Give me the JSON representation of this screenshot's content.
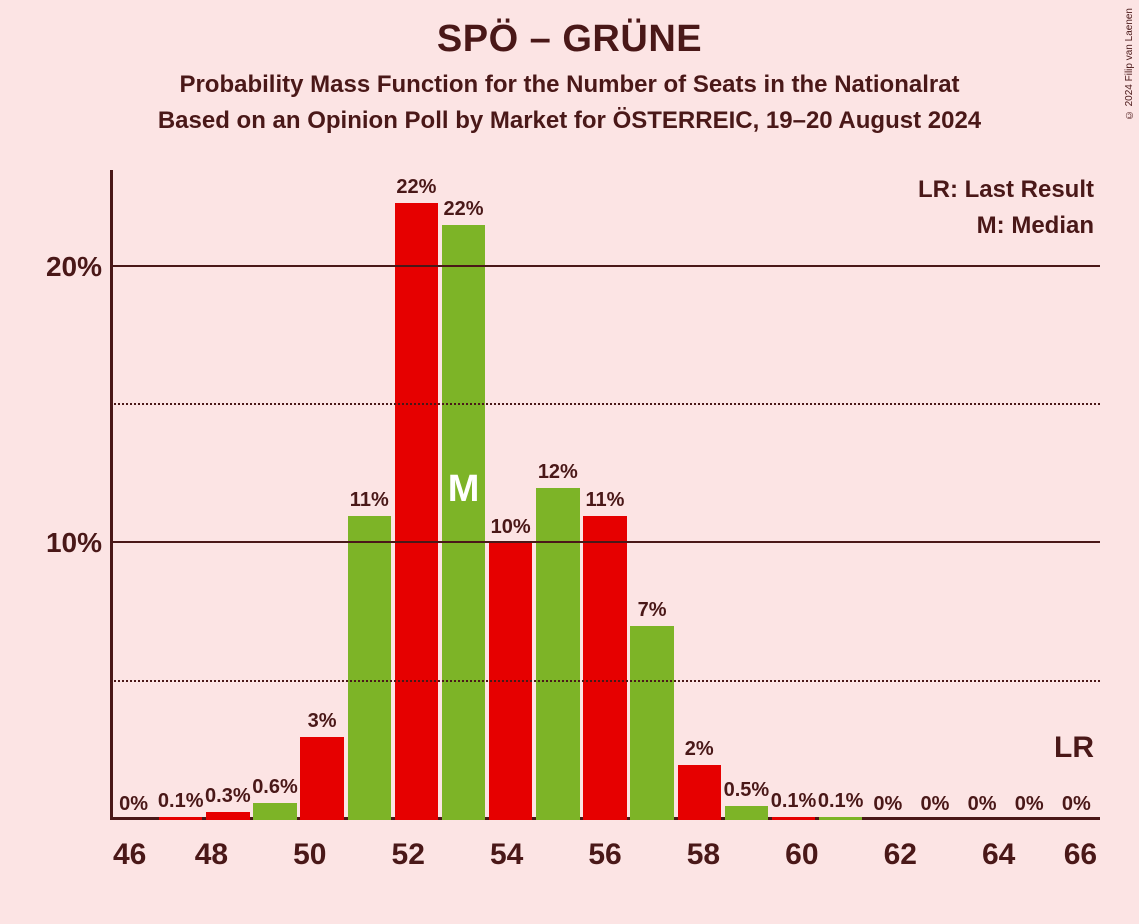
{
  "title": "SPÖ – GRÜNE",
  "subtitle": "Probability Mass Function for the Number of Seats in the Nationalrat",
  "subline": "Based on an Opinion Poll by Market for ÖSTERREIC, 19–20 August 2024",
  "copyright": "© 2024 Filip van Laenen",
  "legend": {
    "lr": "LR: Last Result",
    "m": "M: Median"
  },
  "lr_label": "LR",
  "m_label": "M",
  "chart": {
    "type": "bar",
    "background_color": "#fce4e4",
    "axis_color": "#4a1818",
    "text_color": "#4a1818",
    "colors": {
      "red": "#e60000",
      "green": "#7db427"
    },
    "grid_major_color": "#4a1818",
    "grid_minor_style": "dotted",
    "yaxis": {
      "ylim_max_pct": 23.5,
      "major_ticks": [
        10,
        20
      ],
      "minor_ticks": [
        5,
        15
      ],
      "label_suffix": "%"
    },
    "xaxis": {
      "min": 46,
      "max": 66,
      "ticks": [
        46,
        48,
        50,
        52,
        54,
        56,
        58,
        60,
        62,
        64,
        66
      ]
    },
    "median_seat": 53,
    "lr_seat": 66,
    "bars": [
      {
        "seat": 46,
        "value": 0,
        "label": "0%",
        "color": "green"
      },
      {
        "seat": 47,
        "value": 0.1,
        "label": "0.1%",
        "color": "red"
      },
      {
        "seat": 48,
        "value": 0.3,
        "label": "0.3%",
        "color": "red"
      },
      {
        "seat": 49,
        "value": 0.6,
        "label": "0.6%",
        "color": "green"
      },
      {
        "seat": 50,
        "value": 3,
        "label": "3%",
        "color": "red"
      },
      {
        "seat": 51,
        "value": 11,
        "label": "11%",
        "color": "green"
      },
      {
        "seat": 52,
        "value": 22.3,
        "label": "22%",
        "color": "red"
      },
      {
        "seat": 53,
        "value": 21.5,
        "label": "22%",
        "color": "green"
      },
      {
        "seat": 54,
        "value": 10,
        "label": "10%",
        "color": "red"
      },
      {
        "seat": 55,
        "value": 12,
        "label": "12%",
        "color": "green"
      },
      {
        "seat": 56,
        "value": 11,
        "label": "11%",
        "color": "red"
      },
      {
        "seat": 57,
        "value": 7,
        "label": "7%",
        "color": "green"
      },
      {
        "seat": 58,
        "value": 2,
        "label": "2%",
        "color": "red"
      },
      {
        "seat": 59,
        "value": 0.5,
        "label": "0.5%",
        "color": "green"
      },
      {
        "seat": 60,
        "value": 0.1,
        "label": "0.1%",
        "color": "red"
      },
      {
        "seat": 61,
        "value": 0.1,
        "label": "0.1%",
        "color": "green"
      },
      {
        "seat": 62,
        "value": 0,
        "label": "0%",
        "color": "green"
      },
      {
        "seat": 63,
        "value": 0,
        "label": "0%",
        "color": "red"
      },
      {
        "seat": 64,
        "value": 0,
        "label": "0%",
        "color": "green"
      },
      {
        "seat": 65,
        "value": 0,
        "label": "0%",
        "color": "red"
      },
      {
        "seat": 66,
        "value": 0,
        "label": "0%",
        "color": "green"
      }
    ]
  }
}
